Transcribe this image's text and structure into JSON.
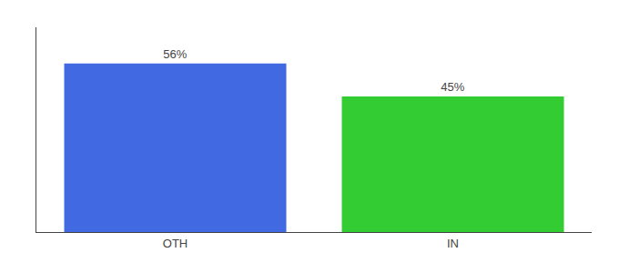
{
  "chart_data": {
    "type": "bar",
    "categories": [
      "OTH",
      "IN"
    ],
    "values": [
      56,
      45
    ],
    "value_labels": [
      "56%",
      "45%"
    ],
    "colors": [
      "#4169e1",
      "#33cc33"
    ],
    "ylim": [
      0,
      68
    ],
    "data_labels": true,
    "tick_labels": "x",
    "grid": false
  }
}
